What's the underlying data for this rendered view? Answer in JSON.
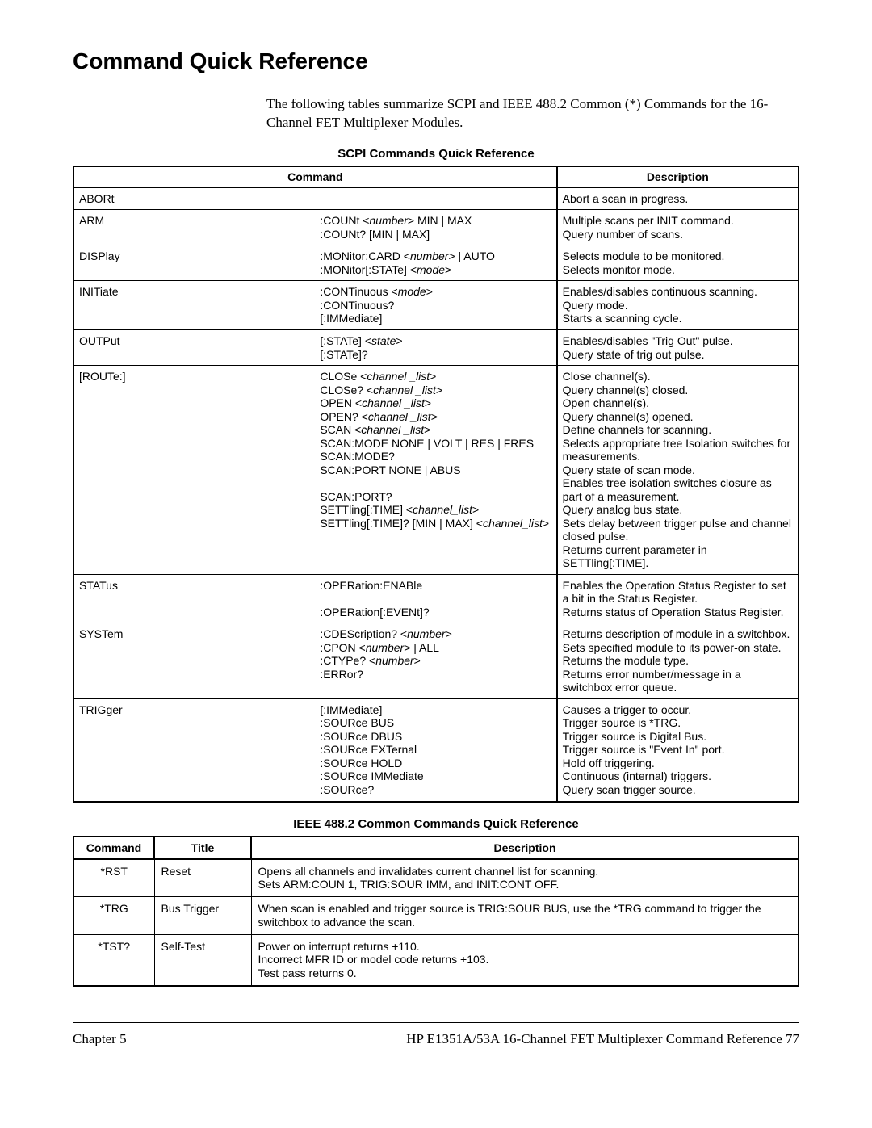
{
  "title": "Command Quick Reference",
  "intro": "The following tables summarize SCPI and IEEE 488.2 Common (*) Commands for the 16-Channel FET Multiplexer Modules.",
  "scpi_table": {
    "caption": "SCPI Commands Quick Reference",
    "headers": {
      "command": "Command",
      "description": "Description"
    },
    "rows": [
      {
        "cmd": "ABORt",
        "sub": "",
        "desc": "Abort a scan in progress."
      },
      {
        "cmd": "ARM",
        "sub": ":COUNt <it>number</it>> MIN | MAX\n:COUNt? [MIN | MAX]",
        "desc": "Multiple scans per INIT command.\nQuery number of scans."
      },
      {
        "cmd": "DISPlay",
        "sub": ":MONitor:CARD <it>number</it>> | AUTO\n:MONitor[:STATe] <it>mode</it>>",
        "desc": "Selects module to be monitored.\nSelects monitor mode."
      },
      {
        "cmd": "INITiate",
        "sub": ":CONTinuous <it>mode</it>>\n:CONTinuous?\n[:IMMediate]",
        "desc": "Enables/disables continuous scanning.\nQuery mode.\nStarts a scanning cycle."
      },
      {
        "cmd": "OUTPut",
        "sub": "[:STATe] <it>state</it>>\n[:STATe]?",
        "desc": "Enables/disables \"Trig Out\" pulse.\nQuery state of trig out pulse."
      },
      {
        "cmd": "[ROUTe:]",
        "sub": "CLOSe <it>channel _list</it>>\nCLOSe? <it>channel _list</it>>\nOPEN <it>channel _list</it>>\nOPEN? <it>channel _list</it>>\nSCAN <it>channel _list</it>>\nSCAN:MODE NONE | VOLT | RES | FRES\nSCAN:MODE?\nSCAN:PORT NONE | ABUS\n\nSCAN:PORT?\nSETTling[:TIME] <it>channel_list</it>>\nSETTling[:TIME]? [MIN | MAX] <it>channel_list</it>>",
        "desc": "Close channel(s).\nQuery channel(s) closed.\nOpen channel(s).\nQuery channel(s) opened.\nDefine channels for scanning.\nSelects appropriate tree Isolation switches for measurements.\nQuery state of scan mode.\nEnables tree isolation switches closure as part of a measurement.\nQuery analog bus state.\nSets delay between trigger pulse and channel closed pulse.\nReturns current parameter in SETTling[:TIME]."
      },
      {
        "cmd": "STATus",
        "sub": ":OPERation:ENABle\n\n:OPERation[:EVENt]?",
        "desc": "Enables the Operation Status Register to set a bit in the Status Register.\nReturns status of Operation Status Register."
      },
      {
        "cmd": "SYSTem",
        "sub": ":CDEScription? <it>number</it>>\n:CPON <it>number</it>> | ALL\n:CTYPe? <it>number</it>>\n:ERRor?",
        "desc": "Returns description of module in a switchbox.\nSets specified module to its power-on state.\nReturns the module type.\nReturns error number/message in a switchbox error queue."
      },
      {
        "cmd": "TRIGger",
        "sub": "[:IMMediate]\n:SOURce BUS\n:SOURce DBUS\n:SOURce EXTernal\n:SOURce HOLD\n:SOURce IMMediate\n:SOURce?",
        "desc": "Causes a trigger to occur.\nTrigger source is *TRG.\nTrigger source is Digital Bus.\nTrigger source is \"Event In\" port.\nHold off triggering.\nContinuous (internal) triggers.\nQuery scan trigger source."
      }
    ]
  },
  "ieee_table": {
    "caption": "IEEE 488.2 Common Commands Quick Reference",
    "headers": {
      "command": "Command",
      "title": "Title",
      "description": "Description"
    },
    "rows": [
      {
        "cmd": "*RST",
        "title": "Reset",
        "desc": "Opens all channels and invalidates current channel list for scanning.\nSets ARM:COUN 1, TRIG:SOUR IMM, and INIT:CONT OFF."
      },
      {
        "cmd": "*TRG",
        "title": "Bus Trigger",
        "desc": "When scan is enabled and trigger source is TRIG:SOUR BUS, use the *TRG command to trigger the switchbox to advance the scan."
      },
      {
        "cmd": "*TST?",
        "title": "Self-Test",
        "desc": "Power on interrupt returns +110.\nIncorrect MFR ID or model code returns +103.\nTest pass returns 0."
      }
    ]
  },
  "footer": {
    "left": "Chapter 5",
    "right": "HP E1351A/53A 16-Channel FET Multiplexer Command Reference   77"
  }
}
